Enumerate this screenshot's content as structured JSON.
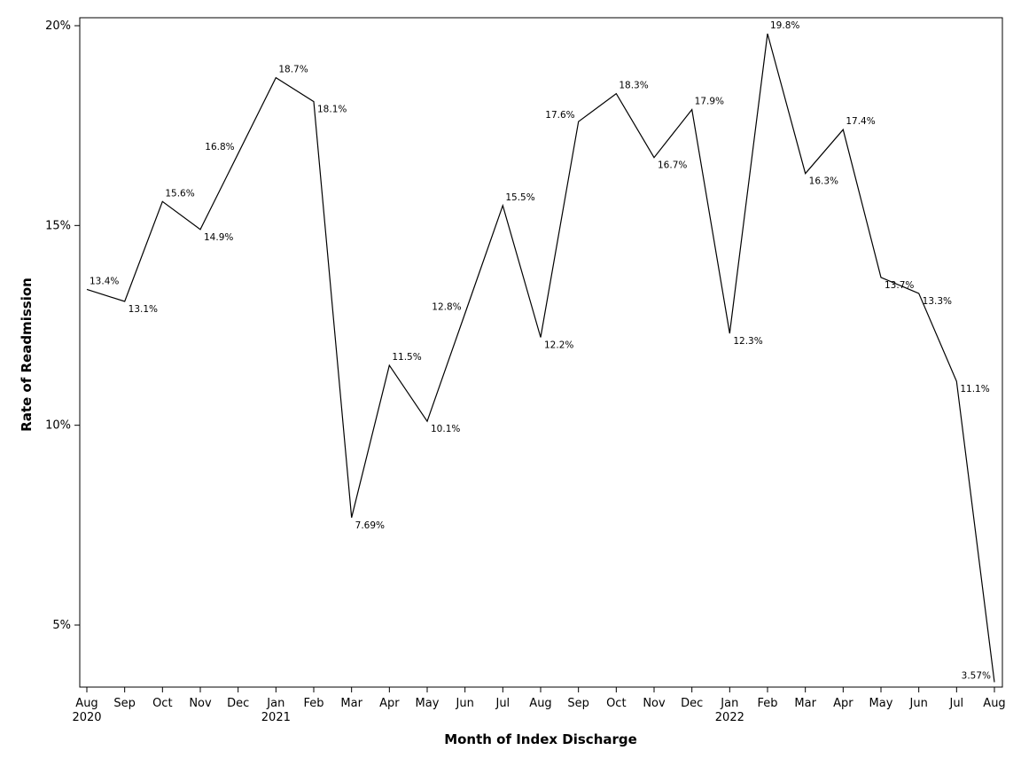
{
  "chart_data": {
    "type": "line",
    "xlabel": "Month of Index Discharge",
    "ylabel": "Rate of Readmission",
    "ylim": [
      3.4,
      20.2
    ],
    "yticks": [
      {
        "value": 5,
        "label": "5%"
      },
      {
        "value": 10,
        "label": "10%"
      },
      {
        "value": 15,
        "label": "15%"
      },
      {
        "value": 20,
        "label": "20%"
      }
    ],
    "grid": false,
    "legend": "none",
    "line_color": "#000000",
    "categories": [
      "Aug",
      "Sep",
      "Oct",
      "Nov",
      "Dec",
      "Jan",
      "Feb",
      "Mar",
      "Apr",
      "May",
      "Jun",
      "Jul",
      "Aug",
      "Sep",
      "Oct",
      "Nov",
      "Dec",
      "Jan",
      "Feb",
      "Mar",
      "Apr",
      "May",
      "Jun",
      "Jul",
      "Aug"
    ],
    "year_labels": [
      "2020",
      "",
      "",
      "",
      "",
      "2021",
      "",
      "",
      "",
      "",
      "",
      "",
      "",
      "",
      "",
      "",
      "",
      "2022",
      "",
      "",
      "",
      "",
      "",
      "",
      ""
    ],
    "values": [
      13.4,
      13.1,
      15.6,
      14.9,
      16.8,
      18.7,
      18.1,
      7.69,
      11.5,
      10.1,
      12.8,
      15.5,
      12.2,
      17.6,
      18.3,
      16.7,
      17.9,
      12.3,
      19.8,
      16.3,
      17.4,
      13.7,
      13.3,
      11.1,
      3.57
    ],
    "data_labels": [
      "13.4%",
      "13.1%",
      "15.6%",
      "14.9%",
      "16.8%",
      "18.7%",
      "18.1%",
      "7.69%",
      "11.5%",
      "10.1%",
      "12.8%",
      "15.5%",
      "12.2%",
      "17.6%",
      "18.3%",
      "16.7%",
      "17.9%",
      "12.3%",
      "19.8%",
      "16.3%",
      "17.4%",
      "13.7%",
      "13.3%",
      "11.1%",
      "3.57%"
    ]
  }
}
